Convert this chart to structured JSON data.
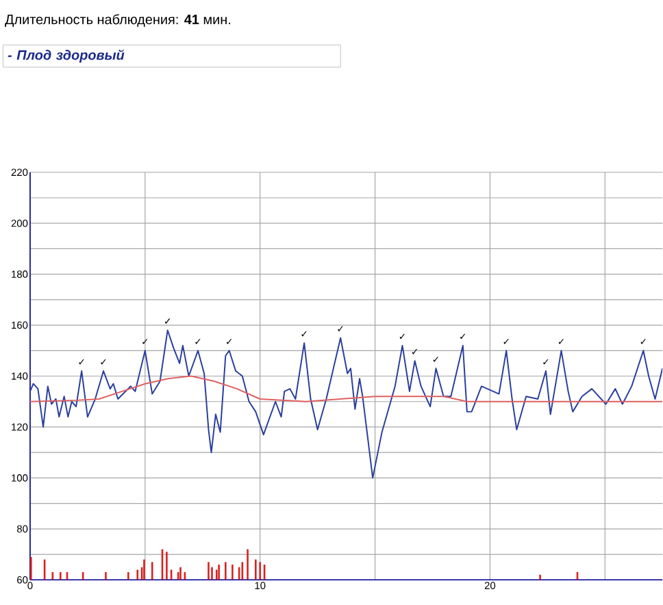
{
  "chart_data": {
    "type": "line",
    "title": "Длительность наблюдения: **41** мин.",
    "subtitle": "- Плод здоровый",
    "xlim": [
      0,
      27.5
    ],
    "ylim": [
      60,
      220
    ],
    "xticks": [
      0,
      {
        "value": 5,
        "label": null
      },
      10,
      {
        "value": 15,
        "label": null
      },
      20,
      {
        "value": 25,
        "label": null
      }
    ],
    "yticks": [
      60,
      {
        "value": 70,
        "label": null
      },
      80,
      {
        "value": 90,
        "label": null
      },
      100,
      {
        "value": 110,
        "label": null
      },
      120,
      {
        "value": 130,
        "label": null
      },
      140,
      {
        "value": 150,
        "label": null
      },
      160,
      {
        "value": 170,
        "label": null
      },
      180,
      {
        "value": 190,
        "label": null
      },
      200,
      {
        "value": 210,
        "label": null
      },
      220
    ],
    "grid": true,
    "series": [
      {
        "color": "#2a3f9e",
        "x": [
          0,
          0.14,
          0.34,
          0.57,
          0.77,
          0.93,
          1.12,
          1.26,
          1.48,
          1.65,
          1.81,
          2.0,
          2.24,
          2.5,
          2.83,
          3.19,
          3.48,
          3.62,
          3.82,
          4.37,
          4.57,
          5.0,
          5.31,
          5.65,
          5.98,
          6.24,
          6.5,
          6.64,
          6.9,
          7.3,
          7.57,
          7.76,
          7.88,
          8.07,
          8.27,
          8.5,
          8.66,
          8.94,
          9.23,
          9.52,
          9.81,
          10.15,
          10.67,
          10.92,
          11.06,
          11.3,
          11.54,
          11.92,
          12.2,
          12.5,
          12.88,
          13.5,
          13.8,
          13.94,
          14.13,
          14.33,
          14.46,
          14.9,
          15.3,
          15.87,
          16.19,
          16.5,
          16.73,
          17.0,
          17.4,
          17.65,
          17.98,
          18.3,
          18.82,
          19.0,
          19.2,
          19.63,
          20.14,
          20.39,
          20.71,
          20.96,
          21.16,
          21.57,
          22.08,
          22.43,
          22.63,
          23.1,
          23.4,
          23.6,
          24.0,
          24.43,
          25.04,
          25.45,
          25.76,
          26.16,
          26.67,
          26.9,
          27.18,
          27.5
        ],
        "values": [
          134,
          137,
          135,
          120,
          136,
          129,
          131,
          124,
          132,
          124,
          130,
          128,
          142,
          124,
          131,
          142,
          135,
          137,
          131,
          136,
          134,
          150,
          133,
          138,
          158,
          151,
          145,
          152,
          140,
          150,
          141,
          119,
          110,
          125,
          118,
          148,
          150,
          142,
          140,
          130,
          126,
          117,
          130,
          124,
          134,
          135,
          131,
          153,
          131,
          119,
          131,
          155,
          141,
          143,
          127,
          139,
          132,
          100,
          118,
          136,
          152,
          134,
          146,
          136,
          128,
          143,
          132,
          132,
          152,
          126,
          126,
          136,
          134,
          133,
          150,
          131,
          119,
          132,
          131,
          142,
          125,
          150,
          134,
          126,
          132,
          135,
          129,
          135,
          129,
          136,
          150,
          140,
          131,
          143
        ]
      },
      {
        "color": "#e06060",
        "x": [
          0,
          2,
          3,
          4,
          5,
          6,
          7,
          8,
          9,
          10,
          12,
          15,
          18,
          19,
          27.5
        ],
        "values": [
          130,
          130.5,
          131,
          134,
          137,
          139,
          140,
          138,
          135,
          131,
          130,
          132,
          132,
          130,
          130
        ]
      },
      {
        "type": "bar",
        "color": "#d82020",
        "x": [
          0.04,
          0.63,
          0.98,
          1.32,
          1.61,
          2.3,
          3.29,
          4.27,
          4.67,
          4.86,
          4.96,
          5.31,
          5.75,
          5.94,
          6.14,
          6.44,
          6.54,
          6.73,
          7.76,
          7.91,
          8.11,
          8.21,
          8.5,
          8.8,
          9.09,
          9.23,
          9.46,
          9.81,
          10.0,
          10.19,
          22.18,
          23.8
        ],
        "values": [
          69,
          68,
          63,
          63,
          63,
          63,
          63,
          63,
          64,
          65,
          68,
          67,
          72,
          71,
          64,
          63,
          65,
          63,
          67,
          65,
          64,
          66,
          67,
          66,
          65,
          67,
          72,
          68,
          67,
          66,
          62,
          63
        ]
      }
    ],
    "annotations": [
      {
        "text": "✓",
        "x": 2.24,
        "y": 142
      },
      {
        "text": "✓",
        "x": 3.19,
        "y": 142
      },
      {
        "text": "✓",
        "x": 5.0,
        "y": 150
      },
      {
        "text": "✓",
        "x": 5.98,
        "y": 158
      },
      {
        "text": "✓",
        "x": 7.3,
        "y": 150
      },
      {
        "text": "✓",
        "x": 8.66,
        "y": 150
      },
      {
        "text": "✓",
        "x": 11.92,
        "y": 153
      },
      {
        "text": "✓",
        "x": 13.5,
        "y": 155
      },
      {
        "text": "✓",
        "x": 16.19,
        "y": 152
      },
      {
        "text": "✓",
        "x": 16.73,
        "y": 146
      },
      {
        "text": "✓",
        "x": 17.65,
        "y": 143
      },
      {
        "text": "✓",
        "x": 18.82,
        "y": 152
      },
      {
        "text": "✓",
        "x": 20.71,
        "y": 150
      },
      {
        "text": "✓",
        "x": 22.43,
        "y": 142
      },
      {
        "text": "✓",
        "x": 23.1,
        "y": 150
      },
      {
        "text": "✓",
        "x": 26.67,
        "y": 150
      }
    ]
  }
}
